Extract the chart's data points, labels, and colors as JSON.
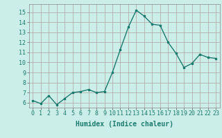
{
  "x": [
    0,
    1,
    2,
    3,
    4,
    5,
    6,
    7,
    8,
    9,
    10,
    11,
    12,
    13,
    14,
    15,
    16,
    17,
    18,
    19,
    20,
    21,
    22,
    23
  ],
  "y": [
    6.2,
    5.9,
    6.7,
    5.8,
    6.4,
    7.0,
    7.1,
    7.3,
    7.0,
    7.1,
    9.0,
    11.3,
    13.5,
    15.2,
    14.6,
    13.8,
    13.7,
    12.0,
    10.9,
    9.5,
    9.9,
    10.8,
    10.5,
    10.4
  ],
  "line_color": "#1a7a6e",
  "marker": "s",
  "marker_size": 2.0,
  "bg_color": "#cceee8",
  "grid_color": "#b0a0a0",
  "xlabel": "Humidex (Indice chaleur)",
  "xlim": [
    -0.5,
    23.5
  ],
  "ylim": [
    5.5,
    15.8
  ],
  "yticks": [
    6,
    7,
    8,
    9,
    10,
    11,
    12,
    13,
    14,
    15
  ],
  "xticks": [
    0,
    1,
    2,
    3,
    4,
    5,
    6,
    7,
    8,
    9,
    10,
    11,
    12,
    13,
    14,
    15,
    16,
    17,
    18,
    19,
    20,
    21,
    22,
    23
  ],
  "tick_fontsize": 6,
  "label_fontsize": 7,
  "line_width": 1.0
}
